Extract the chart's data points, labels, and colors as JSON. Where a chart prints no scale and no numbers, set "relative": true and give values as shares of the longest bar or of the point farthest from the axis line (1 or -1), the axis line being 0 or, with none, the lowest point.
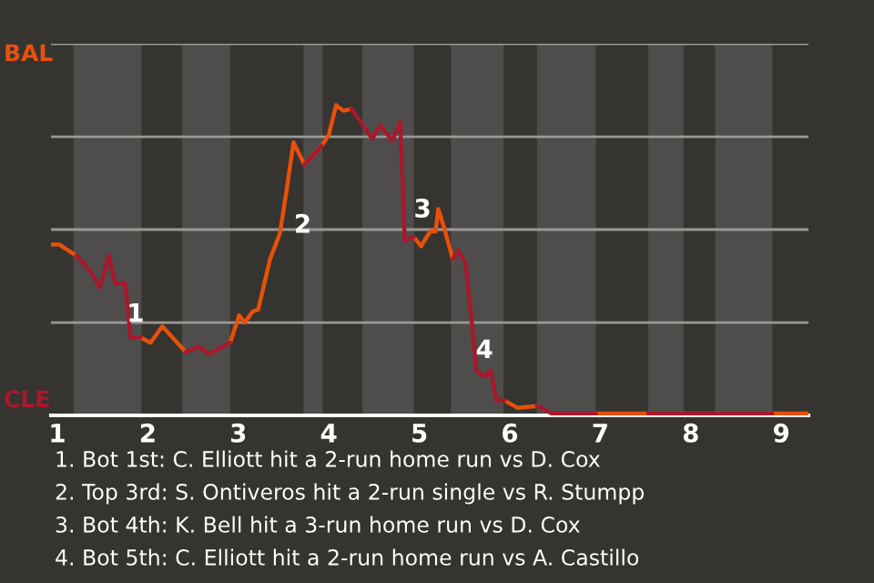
{
  "chart_data": {
    "type": "line",
    "relative": true,
    "x": [
      0.93,
      1.02,
      1.21,
      1.36,
      1.47,
      1.57,
      1.64,
      1.75,
      1.81,
      1.92,
      2.03,
      2.16,
      2.42,
      2.56,
      2.68,
      2.91,
      3.01,
      3.07,
      3.16,
      3.22,
      3.35,
      3.46,
      3.53,
      3.61,
      3.73,
      3.92,
      4.0,
      4.08,
      4.16,
      4.25,
      4.48,
      4.57,
      4.7,
      4.79,
      4.84,
      4.94,
      5.02,
      5.12,
      5.18,
      5.21,
      5.28,
      5.37,
      5.43,
      5.51,
      5.58,
      5.63,
      5.72,
      5.79,
      5.85,
      5.94,
      6.09,
      6.3,
      6.39,
      6.46,
      6.95,
      7.0,
      7.53,
      7.92,
      8.27,
      8.9,
      9.3
    ],
    "series": [
      {
        "color": "#e8500a",
        "values": [
          0.551,
          0.551,
          0.515,
          null,
          null,
          null,
          null,
          null,
          null,
          0.251,
          0.234,
          0.287,
          0.204,
          null,
          null,
          0.234,
          0.323,
          0.299,
          0.335,
          0.341,
          0.503,
          0.587,
          0.719,
          0.88,
          0.808,
          0.868,
          0.904,
          1,
          0.982,
          0.988,
          null,
          null,
          null,
          null,
          null,
          0.575,
          0.545,
          0.593,
          0.593,
          0.665,
          0.599,
          0.503,
          null,
          null,
          null,
          null,
          null,
          null,
          null,
          0.048,
          0.024,
          0.03,
          null,
          null,
          0.006,
          0.006,
          0.006,
          0.006,
          0.006,
          0.006,
          0.006
        ]
      },
      {
        "color": "#a8182e",
        "values": [
          null,
          null,
          0.515,
          0.467,
          0.413,
          0.515,
          0.425,
          0.425,
          0.251,
          0.251,
          null,
          null,
          0.204,
          0.222,
          0.198,
          0.234,
          null,
          null,
          null,
          null,
          null,
          null,
          null,
          null,
          0.808,
          0.868,
          null,
          null,
          null,
          0.988,
          0.892,
          0.934,
          0.886,
          0.946,
          0.563,
          0.575,
          null,
          null,
          null,
          null,
          null,
          0.503,
          0.533,
          0.491,
          0.299,
          0.144,
          0.126,
          0.144,
          0.048,
          0.048,
          null,
          0.03,
          0.018,
          0.006,
          0.006,
          null,
          0.006,
          0.006,
          0.006,
          0.006,
          null
        ]
      }
    ],
    "xlim": [
      0.93,
      9.3
    ],
    "xticks": [
      1,
      2,
      3,
      4,
      5,
      6,
      7,
      8,
      9
    ],
    "ref_lines": [
      {
        "axis": "y",
        "value": 0.299,
        "label": null,
        "color": "#9a9996"
      },
      {
        "axis": "y",
        "value": 0.599,
        "label": null,
        "color": "#9a9996"
      },
      {
        "axis": "y",
        "value": 0.898,
        "label": null,
        "color": "#9a9996"
      },
      {
        "axis": "y",
        "value": 1.198,
        "label": null,
        "color": "#9a9996"
      }
    ],
    "bands": [
      {
        "axis": "x",
        "from": 1.18,
        "to": 1.93,
        "label": null,
        "color": "#4e4d4b"
      },
      {
        "axis": "x",
        "from": 2.38,
        "to": 2.91,
        "label": null,
        "color": "#4e4d4b"
      },
      {
        "axis": "x",
        "from": 3.72,
        "to": 3.93,
        "label": null,
        "color": "#4e4d4b"
      },
      {
        "axis": "x",
        "from": 4.37,
        "to": 4.94,
        "label": null,
        "color": "#4e4d4b"
      },
      {
        "axis": "x",
        "from": 5.35,
        "to": 5.93,
        "label": null,
        "color": "#4e4d4b"
      },
      {
        "axis": "x",
        "from": 6.3,
        "to": 6.95,
        "label": null,
        "color": "#4e4d4b"
      },
      {
        "axis": "x",
        "from": 7.53,
        "to": 7.92,
        "label": null,
        "color": "#4e4d4b"
      },
      {
        "axis": "x",
        "from": 8.27,
        "to": 8.9,
        "label": null,
        "color": "#4e4d4b"
      }
    ],
    "annotations": [
      {
        "text": "1",
        "x": 1.92,
        "y": 0.251
      },
      {
        "text": "2",
        "x": 3.46,
        "y": 0.587
      },
      {
        "text": "3",
        "x": 4.84,
        "y": 0.563
      },
      {
        "text": "4",
        "x": 5.72,
        "y": 0.126
      },
      "BAL",
      "CLE",
      "1. Bot 1st: C. Elliott hit a 2-run home run vs D. Cox",
      "2. Top 3rd: S. Ontiveros hit a 2-run single vs R. Stumpp",
      "3. Bot 4th: K. Bell hit a 3-run home run vs D. Cox",
      "4. Bot 5th: C. Elliott hit a 2-run home run vs A. Castillo"
    ]
  }
}
